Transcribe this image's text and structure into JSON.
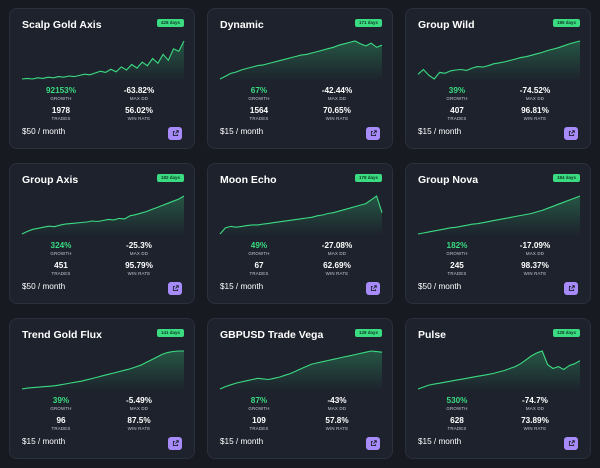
{
  "stat_labels": {
    "growth": "GROWTH",
    "max_dd": "MAX DD",
    "trades": "TRADES",
    "win_rate": "WIN RATE"
  },
  "colors": {
    "background": "#171a21",
    "card": "#1d222c",
    "accent_green": "#3bdb82",
    "link_button": "#a78bfa"
  },
  "link_icon": "external-link-icon",
  "cards": [
    {
      "title": "Scalp Gold Axis",
      "days": "428 days",
      "growth": "92153%",
      "max_dd": "-63.82%",
      "trades": "1978",
      "win_rate": "56.02%",
      "price": "$50 / month",
      "chart": [
        2,
        3,
        2,
        4,
        3,
        5,
        4,
        6,
        5,
        7,
        6,
        8,
        10,
        9,
        12,
        15,
        13,
        18,
        14,
        22,
        17,
        26,
        20,
        30,
        24,
        36,
        28,
        43,
        33,
        52,
        48,
        65
      ]
    },
    {
      "title": "Dynamic",
      "days": "171 days",
      "growth": "67%",
      "max_dd": "-42.44%",
      "trades": "1564",
      "win_rate": "70.65%",
      "price": "$15 / month",
      "chart": [
        10,
        14,
        18,
        20,
        23,
        25,
        27,
        29,
        30,
        32,
        34,
        36,
        38,
        40,
        42,
        44,
        45,
        47,
        49,
        51,
        53,
        55,
        58,
        60,
        62,
        64,
        60,
        57,
        61,
        55,
        58
      ]
    },
    {
      "title": "Group Wild",
      "days": "185 days",
      "growth": "39%",
      "max_dd": "-74.52%",
      "trades": "407",
      "win_rate": "96.81%",
      "price": "$15 / month",
      "chart": [
        20,
        30,
        18,
        10,
        24,
        22,
        27,
        29,
        30,
        28,
        33,
        36,
        35,
        38,
        42,
        44,
        46,
        49,
        52,
        55,
        57,
        60,
        63,
        66,
        70,
        73,
        76,
        80,
        84,
        87,
        90
      ]
    },
    {
      "title": "Group Axis",
      "days": "182 days",
      "growth": "324%",
      "max_dd": "-25.3%",
      "trades": "451",
      "win_rate": "95.79%",
      "price": "$50 / month",
      "chart": [
        5,
        10,
        14,
        16,
        18,
        20,
        19,
        22,
        24,
        25,
        26,
        27,
        28,
        30,
        29,
        31,
        33,
        32,
        35,
        34,
        40,
        42,
        45,
        48,
        52,
        56,
        60,
        64,
        68,
        72,
        78
      ]
    },
    {
      "title": "Moon Echo",
      "days": "178 days",
      "growth": "49%",
      "max_dd": "-27.08%",
      "trades": "67",
      "win_rate": "62.69%",
      "price": "$15 / month",
      "chart": [
        10,
        18,
        20,
        19,
        20,
        21,
        22,
        22,
        23,
        24,
        25,
        26,
        27,
        28,
        29,
        30,
        31,
        32,
        34,
        35,
        37,
        38,
        40,
        42,
        44,
        46,
        48,
        50,
        55,
        60,
        38
      ]
    },
    {
      "title": "Group Nova",
      "days": "184 days",
      "growth": "182%",
      "max_dd": "-17.09%",
      "trades": "245",
      "win_rate": "98.37%",
      "price": "$50 / month",
      "chart": [
        10,
        12,
        14,
        16,
        18,
        20,
        22,
        23,
        25,
        27,
        29,
        30,
        32,
        34,
        36,
        38,
        40,
        42,
        44,
        46,
        48,
        50,
        53,
        56,
        60,
        64,
        68,
        72,
        76,
        80,
        84
      ]
    },
    {
      "title": "Trend Gold Flux",
      "days": "141 days",
      "growth": "39%",
      "max_dd": "-5.49%",
      "trades": "96",
      "win_rate": "87.5%",
      "price": "$15 / month",
      "chart": [
        8,
        10,
        11,
        12,
        13,
        14,
        15,
        17,
        19,
        21,
        23,
        25,
        28,
        31,
        34,
        37,
        40,
        43,
        46,
        49,
        52,
        56,
        60,
        66,
        72,
        78,
        84,
        88,
        90,
        91,
        91
      ]
    },
    {
      "title": "GBPUSD Trade Vega",
      "days": "128 days",
      "growth": "87%",
      "max_dd": "-43%",
      "trades": "109",
      "win_rate": "57.8%",
      "price": "$15 / month",
      "chart": [
        10,
        14,
        17,
        20,
        22,
        24,
        26,
        28,
        27,
        26,
        28,
        30,
        33,
        36,
        40,
        44,
        48,
        52,
        54,
        56,
        58,
        60,
        62,
        64,
        66,
        68,
        70,
        72,
        74,
        73,
        72
      ]
    },
    {
      "title": "Pulse",
      "days": "128 days",
      "growth": "530%",
      "max_dd": "-74.7%",
      "trades": "628",
      "win_rate": "73.89%",
      "price": "$15 / month",
      "chart": [
        10,
        14,
        18,
        20,
        22,
        24,
        26,
        28,
        30,
        32,
        34,
        36,
        38,
        40,
        42,
        45,
        48,
        52,
        56,
        62,
        70,
        78,
        84,
        88,
        60,
        52,
        56,
        50,
        58,
        62,
        68
      ]
    }
  ]
}
